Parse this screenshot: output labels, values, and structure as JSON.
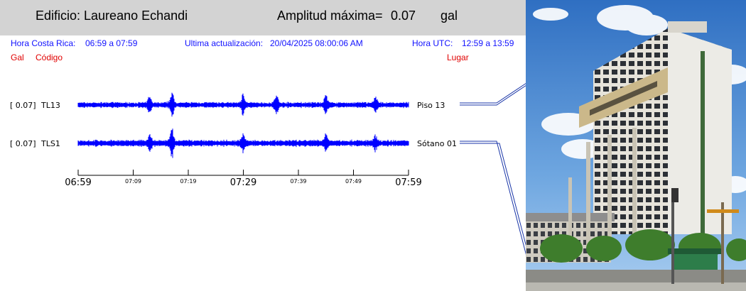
{
  "header": {
    "building_title": "Edificio: Laureano Echandi",
    "amplitude_label": "Amplitud máxima=",
    "amplitude_value": "0.07",
    "amplitude_unit": "gal"
  },
  "info": {
    "local_label": "Hora Costa Rica:",
    "local_range": "06:59 a 07:59",
    "update_label": "Ultima actualización:",
    "update_value": "20/04/2025 08:00:06 AM",
    "utc_label": "Hora UTC:",
    "utc_range": "12:59 a 13:59"
  },
  "columns": {
    "gal": "Gal",
    "code": "Código",
    "place": "Lugar"
  },
  "colors": {
    "trace": "#0000ff",
    "info_text": "#1111ff",
    "column_text": "#e00000",
    "header_bg": "#d3d3d3"
  },
  "chart_data": {
    "type": "line",
    "x_unit": "local time",
    "xlim": [
      "06:59",
      "07:59"
    ],
    "x_major_ticks": [
      "06:59",
      "07:29",
      "07:59"
    ],
    "x_minor_ticks": [
      "07:09",
      "07:19",
      "07:39",
      "07:49"
    ],
    "series": [
      {
        "gal_label": "[  0.07]",
        "code": "TL13",
        "place": "Piso 13",
        "peak_gal": 0.07,
        "bursts": [
          {
            "t": "07:12",
            "a": 0.6
          },
          {
            "t": "07:16",
            "a": 0.9
          },
          {
            "t": "07:29",
            "a": 0.8
          },
          {
            "t": "07:35",
            "a": 0.6
          },
          {
            "t": "07:44",
            "a": 0.6
          },
          {
            "t": "07:53",
            "a": 0.5
          }
        ]
      },
      {
        "gal_label": "[  0.07]",
        "code": "TLS1",
        "place": "Sótano 01",
        "peak_gal": 0.07,
        "bursts": [
          {
            "t": "07:12",
            "a": 0.5
          },
          {
            "t": "07:16",
            "a": 1.0
          },
          {
            "t": "07:29",
            "a": 0.45
          },
          {
            "t": "07:44",
            "a": 0.5
          },
          {
            "t": "07:53",
            "a": 0.35
          }
        ]
      }
    ]
  },
  "photo": {
    "kind": "building-photo"
  }
}
